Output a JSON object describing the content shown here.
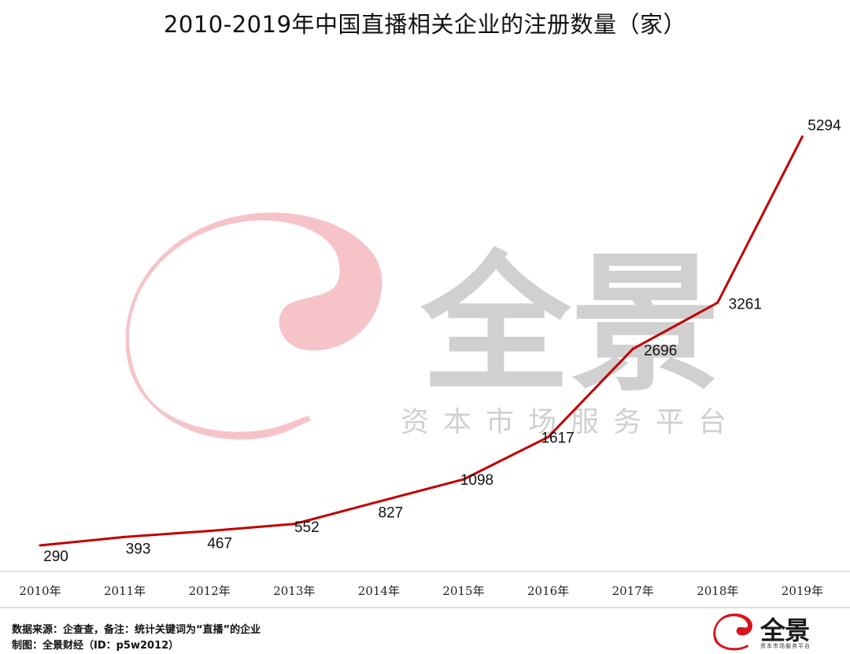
{
  "title": "2010-2019年中国直播相关企业的注册数量（家）",
  "chart_data": {
    "type": "line",
    "categories": [
      "2010年",
      "2011年",
      "2012年",
      "2013年",
      "2014年",
      "2015年",
      "2016年",
      "2017年",
      "2018年",
      "2019年"
    ],
    "values": [
      290,
      393,
      467,
      552,
      827,
      1098,
      1617,
      2696,
      3261,
      5294
    ],
    "title": "2010-2019年中国直播相关企业的注册数量（家）",
    "xlabel": "",
    "ylabel": "",
    "ylim": [
      0,
      6000
    ],
    "grid": false,
    "legend": "none",
    "line_color": "#C00000"
  },
  "watermark": {
    "brand": "全景",
    "tagline": "资本市场服务平台",
    "logo_color": "#F4B8BE",
    "text_color": "#D0D0D0"
  },
  "footer": {
    "source": "数据来源：企查查，备注：统计关键词为“直播”的企业",
    "credit": "制图：全景财经（ID：p5w2012）"
  },
  "corner_logo": {
    "brand": "全景",
    "tagline": "资本市场服务平台",
    "color": "#D7141A"
  }
}
